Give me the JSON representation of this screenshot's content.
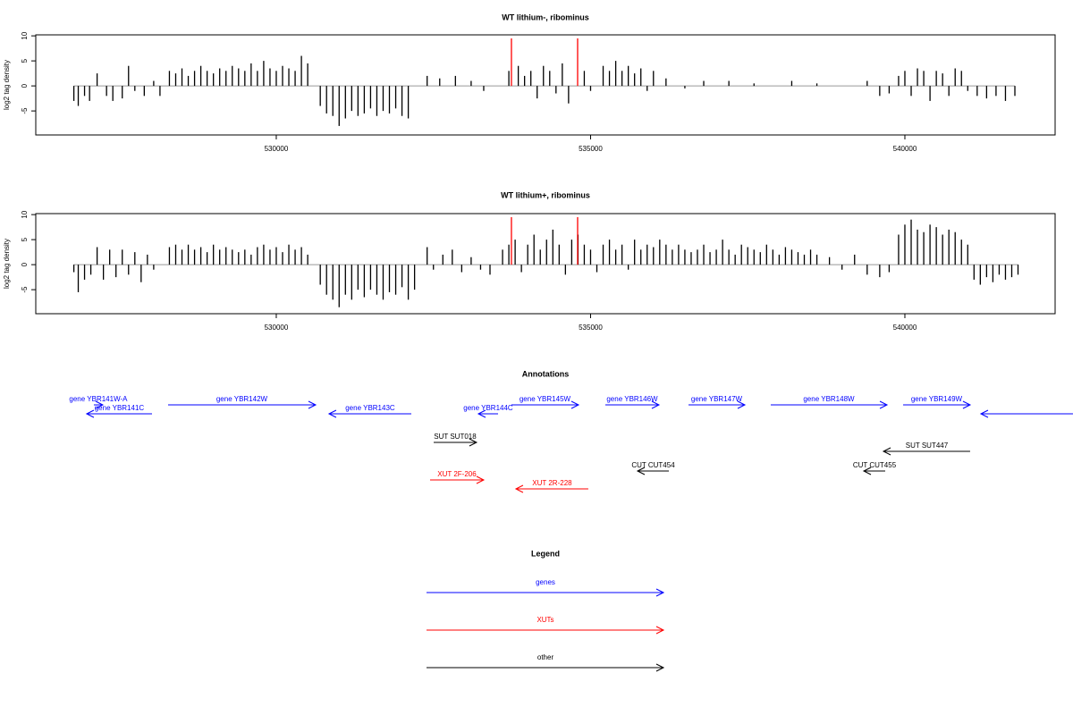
{
  "chart_data": [
    {
      "type": "bar",
      "title": "WT lithium-, ribominus",
      "y_label": "log2 tag density",
      "xlim": [
        526174,
        542390
      ],
      "ylim": [
        -9.8,
        10.2
      ],
      "xticks": [
        530000,
        535000,
        540000
      ],
      "yticks": [
        -5,
        0,
        5,
        10
      ],
      "series": [
        {
          "color": "#000000",
          "x": [
            526780,
            526850,
            526950,
            527030,
            527150,
            527300,
            527400,
            527550,
            527650,
            527750,
            527900,
            528050,
            528150,
            528300,
            528400,
            528500,
            528600,
            528700,
            528800,
            528900,
            529000,
            529100,
            529200,
            529300,
            529400,
            529500,
            529600,
            529700,
            529800,
            529900,
            530000,
            530100,
            530200,
            530300,
            530400,
            530500,
            530700,
            530800,
            530900,
            531000,
            531100,
            531200,
            531300,
            531400,
            531500,
            531600,
            531700,
            531800,
            531900,
            532000,
            532100,
            532400,
            532600,
            532850,
            533100,
            533300,
            533700,
            533850,
            533950,
            534050,
            534150,
            534250,
            534350,
            534450,
            534550,
            534650,
            534900,
            535000,
            535200,
            535300,
            535400,
            535500,
            535600,
            535700,
            535800,
            535900,
            536000,
            536200,
            536500,
            536800,
            537200,
            537600,
            538200,
            538600,
            539400,
            539600,
            539750,
            539900,
            540000,
            540100,
            540200,
            540300,
            540400,
            540500,
            540600,
            540700,
            540800,
            540900,
            541000,
            541150,
            541300,
            541450,
            541600,
            541750
          ],
          "values": [
            -3,
            -4,
            -2,
            -3,
            2.5,
            -2,
            -3,
            -2.5,
            4,
            -1,
            -2,
            1,
            -2,
            3,
            2.5,
            3.5,
            2,
            3,
            4,
            3,
            2.5,
            3.5,
            3,
            4,
            3.5,
            3,
            4.5,
            3,
            5,
            3.5,
            3,
            4,
            3.5,
            3,
            6,
            4.5,
            -4,
            -5.5,
            -6,
            -8,
            -6.5,
            -5,
            -6,
            -5.5,
            -4.5,
            -6,
            -5,
            -5.5,
            -4.5,
            -6,
            -6.5,
            2,
            1.5,
            2,
            1,
            -1,
            3,
            4,
            2,
            3,
            -2.5,
            4,
            3,
            -1.5,
            4.5,
            -3.5,
            3,
            -1,
            4,
            3,
            5,
            3,
            4,
            2.5,
            3.5,
            -1,
            3,
            1.5,
            -0.5,
            1,
            1,
            0.5,
            1,
            0.5,
            1,
            -2,
            -1.5,
            2,
            3,
            -2,
            3.5,
            3,
            -3,
            3,
            2.5,
            -2,
            3.5,
            3,
            -1,
            -2,
            -2.5,
            -2,
            -3,
            -2
          ]
        },
        {
          "color": "#ff0000",
          "x": [
            533741,
            534794
          ],
          "values": [
            9.5,
            9.5
          ]
        }
      ]
    },
    {
      "type": "bar",
      "title": "WT lithium+, ribominus",
      "y_label": "log2 tag density",
      "xlim": [
        526174,
        542390
      ],
      "ylim": [
        -9.8,
        10.2
      ],
      "xticks": [
        530000,
        535000,
        540000
      ],
      "yticks": [
        -5,
        0,
        5,
        10
      ],
      "series": [
        {
          "color": "#000000",
          "x": [
            526780,
            526850,
            526950,
            527050,
            527150,
            527250,
            527350,
            527450,
            527550,
            527650,
            527750,
            527850,
            527950,
            528050,
            528300,
            528400,
            528500,
            528600,
            528700,
            528800,
            528900,
            529000,
            529100,
            529200,
            529300,
            529400,
            529500,
            529600,
            529700,
            529800,
            529900,
            530000,
            530100,
            530200,
            530300,
            530400,
            530500,
            530700,
            530800,
            530900,
            531000,
            531100,
            531200,
            531300,
            531400,
            531500,
            531600,
            531700,
            531800,
            531900,
            532000,
            532100,
            532200,
            532400,
            532500,
            532650,
            532800,
            532950,
            533100,
            533250,
            533400,
            533600,
            533700,
            533800,
            533900,
            534000,
            534100,
            534200,
            534300,
            534400,
            534500,
            534600,
            534700,
            534800,
            534900,
            535000,
            535100,
            535200,
            535300,
            535400,
            535500,
            535600,
            535700,
            535800,
            535900,
            536000,
            536100,
            536200,
            536300,
            536400,
            536500,
            536600,
            536700,
            536800,
            536900,
            537000,
            537100,
            537200,
            537300,
            537400,
            537500,
            537600,
            537700,
            537800,
            537900,
            538000,
            538100,
            538200,
            538300,
            538400,
            538500,
            538600,
            538800,
            539000,
            539200,
            539400,
            539600,
            539750,
            539900,
            540000,
            540100,
            540200,
            540300,
            540400,
            540500,
            540600,
            540700,
            540800,
            540900,
            541000,
            541100,
            541200,
            541300,
            541400,
            541500,
            541600,
            541700,
            541800
          ],
          "values": [
            -1.5,
            -5.5,
            -3,
            -2,
            3.5,
            -3,
            3,
            -2.5,
            3,
            -2,
            2.5,
            -3.5,
            2,
            -1,
            3.5,
            4,
            3,
            4,
            3,
            3.5,
            2.5,
            4,
            3,
            3.5,
            3,
            2.5,
            3,
            2,
            3.5,
            4,
            3,
            3.5,
            2.5,
            4,
            3,
            3.5,
            2,
            -4,
            -6,
            -7,
            -8.5,
            -6,
            -7,
            -5,
            -6.5,
            -5,
            -6,
            -7,
            -5.5,
            -6,
            -4.5,
            -7,
            -5,
            3.5,
            -1,
            2,
            3,
            -1.5,
            1.5,
            -1,
            -2,
            3,
            4,
            5,
            -1.5,
            4,
            6,
            3,
            5,
            7,
            4,
            -2,
            5,
            6,
            4,
            3,
            -1.5,
            4,
            5,
            3,
            4,
            -1,
            5,
            3,
            4,
            3.5,
            5,
            4,
            3,
            4,
            3,
            2.5,
            3,
            4,
            2.5,
            3,
            5,
            3,
            2,
            4,
            3.5,
            3,
            2.5,
            4,
            3,
            2,
            3.5,
            3,
            2.5,
            2,
            3,
            2,
            1.5,
            -1,
            2,
            -2,
            -2.5,
            -1.5,
            6,
            8,
            9,
            7,
            6.5,
            8,
            7.5,
            6,
            7,
            6.5,
            5,
            4,
            -3,
            -4,
            -2.5,
            -3.5,
            -2,
            -3,
            -2.5,
            -2
          ]
        },
        {
          "color": "#ff0000",
          "x": [
            533741,
            534794
          ],
          "values": [
            9.5,
            9.5
          ]
        }
      ]
    }
  ],
  "annotations": {
    "title": "Annotations",
    "features": [
      {
        "label": "gene YBR141W-A",
        "start": 527098,
        "end": 527240,
        "strand": "+",
        "color": "#0000ff"
      },
      {
        "label": "gene YBR141C",
        "start": 526984,
        "end": 528023,
        "strand": "-",
        "color": "#0000ff"
      },
      {
        "label": "gene YBR142W",
        "start": 528279,
        "end": 530626,
        "strand": "+",
        "color": "#0000ff"
      },
      {
        "label": "gene YBR143C",
        "start": 530839,
        "end": 532148,
        "strand": "-",
        "color": "#0000ff"
      },
      {
        "label": "gene YBR144C",
        "start": 533215,
        "end": 533528,
        "strand": "-",
        "color": "#0000ff"
      },
      {
        "label": "gene YBR145W",
        "start": 533741,
        "end": 534808,
        "strand": "+",
        "color": "#0000ff"
      },
      {
        "label": "gene YBR146W",
        "start": 535235,
        "end": 536088,
        "strand": "+",
        "color": "#0000ff"
      },
      {
        "label": "gene YBR147W",
        "start": 536558,
        "end": 537454,
        "strand": "+",
        "color": "#0000ff"
      },
      {
        "label": "gene YBR148W",
        "start": 537866,
        "end": 539716,
        "strand": "+",
        "color": "#0000ff"
      },
      {
        "label": "gene YBR149W",
        "start": 539972,
        "end": 541038,
        "strand": "+",
        "color": "#0000ff"
      },
      {
        "label": null,
        "start": 541209,
        "end": 542674,
        "strand": "-",
        "color": "#0000ff"
      },
      {
        "label": "SUT SUT018",
        "start": 532504,
        "end": 533186,
        "strand": "+",
        "color": "#000000"
      },
      {
        "label": "SUT SUT447",
        "start": 539659,
        "end": 541038,
        "strand": "-",
        "color": "#000000"
      },
      {
        "label": "CUT CUT454",
        "start": 535747,
        "end": 536245,
        "strand": "-",
        "color": "#000000"
      },
      {
        "label": "CUT CUT455",
        "start": 539346,
        "end": 539687,
        "strand": "-",
        "color": "#000000"
      },
      {
        "label": "XUT 2F-206",
        "start": 532447,
        "end": 533300,
        "strand": "+",
        "color": "#ff0000"
      },
      {
        "label": "XUT 2R-228",
        "start": 533812,
        "end": 534964,
        "strand": "-",
        "color": "#ff0000"
      }
    ]
  },
  "legend": {
    "title": "Legend",
    "items": [
      {
        "label": "genes",
        "color": "#0000ff"
      },
      {
        "label": "XUTs",
        "color": "#ff0000"
      },
      {
        "label": "other",
        "color": "#000000"
      }
    ]
  }
}
